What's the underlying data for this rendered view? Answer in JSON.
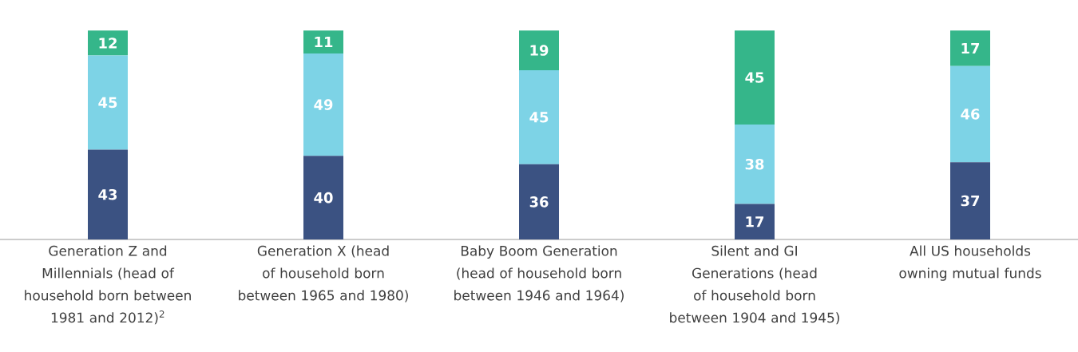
{
  "chart_data": {
    "type": "bar",
    "stacked": true,
    "categories": [
      "Generation Z and Millennials (head of household born between 1981 and 2012)$^{2}$",
      "Generation X (head of household born between 1965 and 1980)",
      "Baby Boom Generation (head of household born between 1946 and 1964)",
      "Silent and GI Generations (head of household born between 1904 and 1945)",
      "All US households owning mutual funds"
    ],
    "series": [
      {
        "color": "#3b5282",
        "values": [
          43,
          40,
          36,
          17,
          37
        ]
      },
      {
        "color": "#7dd3e6",
        "values": [
          45,
          49,
          45,
          38,
          46
        ]
      },
      {
        "color": "#35b68a",
        "values": [
          12,
          11,
          19,
          45,
          17
        ]
      }
    ],
    "tick_labels": "x",
    "data_labels": true
  }
}
